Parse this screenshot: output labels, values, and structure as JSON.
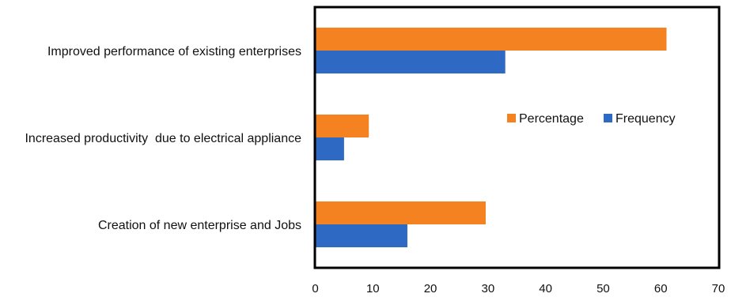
{
  "chart_data": {
    "type": "bar",
    "orientation": "horizontal",
    "categories": [
      "Improved performance of existing enterprises",
      "Increased productivity  due to electrical appliance",
      "Creation of new enterprise and Jobs"
    ],
    "series": [
      {
        "name": "Percentage",
        "values": [
          61,
          9.3,
          29.6
        ],
        "color": "#F58220"
      },
      {
        "name": "Frequency",
        "values": [
          33,
          5,
          16
        ],
        "color": "#2E6AC3"
      }
    ],
    "xlim": [
      0,
      70
    ],
    "xticks": [
      0,
      10,
      20,
      30,
      40,
      50,
      60,
      70
    ],
    "title": "",
    "xlabel": "",
    "ylabel": "",
    "grid": false,
    "legend_position": "right",
    "plot_border_color": "#000000"
  }
}
